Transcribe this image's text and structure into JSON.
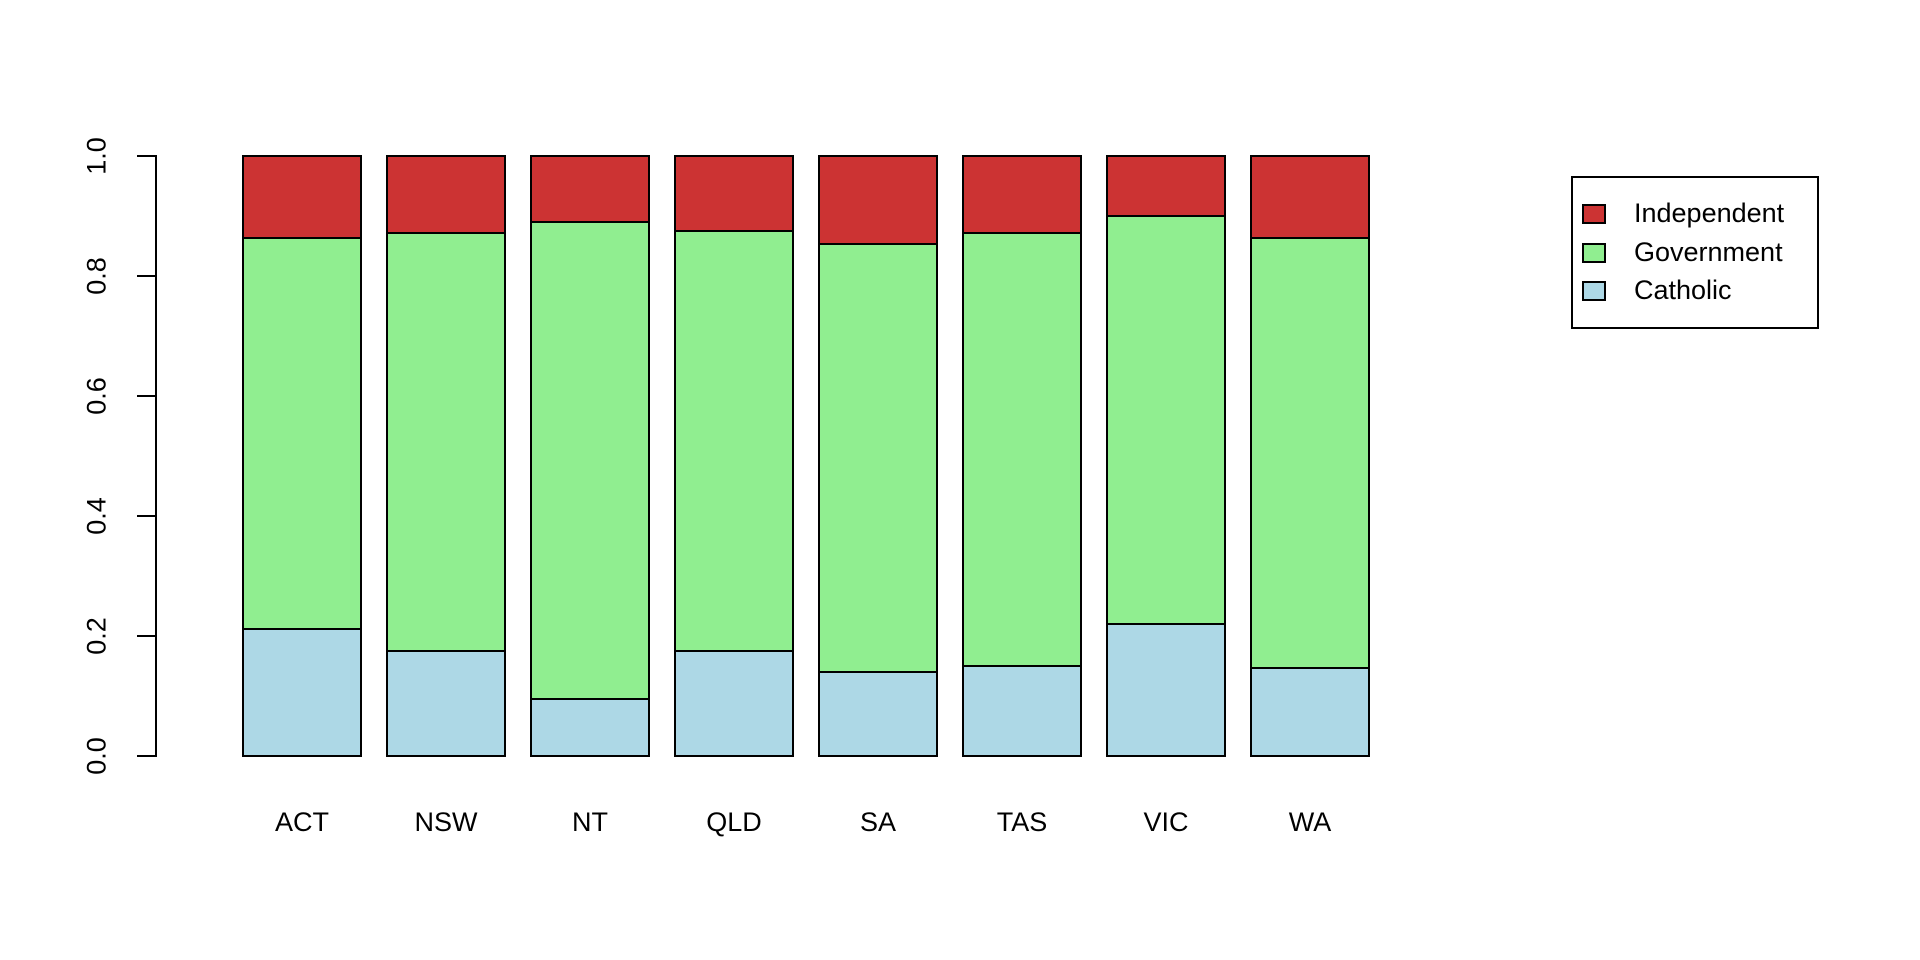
{
  "chart_data": {
    "type": "bar",
    "stacked": true,
    "orientation": "vertical",
    "title": "",
    "xlabel": "",
    "ylabel": "",
    "categories": [
      "ACT",
      "NSW",
      "NT",
      "QLD",
      "SA",
      "TAS",
      "VIC",
      "WA"
    ],
    "series": [
      {
        "name": "Catholic",
        "color": "#ADD8E6",
        "values": [
          0.213,
          0.175,
          0.095,
          0.175,
          0.14,
          0.15,
          0.221,
          0.147
        ]
      },
      {
        "name": "Government",
        "color": "#90EE90",
        "values": [
          0.654,
          0.699,
          0.798,
          0.703,
          0.717,
          0.724,
          0.682,
          0.72
        ]
      },
      {
        "name": "Independent",
        "color": "#CC3333",
        "values": [
          0.133,
          0.126,
          0.107,
          0.122,
          0.143,
          0.126,
          0.097,
          0.133
        ]
      }
    ],
    "ylim": [
      0.0,
      1.0
    ],
    "yticks": [
      0.0,
      0.2,
      0.4,
      0.6,
      0.8,
      1.0
    ],
    "ytick_labels": [
      "0.0",
      "0.2",
      "0.4",
      "0.6",
      "0.8",
      "1.0"
    ],
    "grid": false,
    "bar_border_color": "#000000",
    "background_color": "#FFFFFF",
    "legend": {
      "position": "right",
      "entries": [
        {
          "label": "Independent",
          "color": "#CC3333"
        },
        {
          "label": "Government",
          "color": "#90EE90"
        },
        {
          "label": "Catholic",
          "color": "#ADD8E6"
        }
      ]
    }
  }
}
